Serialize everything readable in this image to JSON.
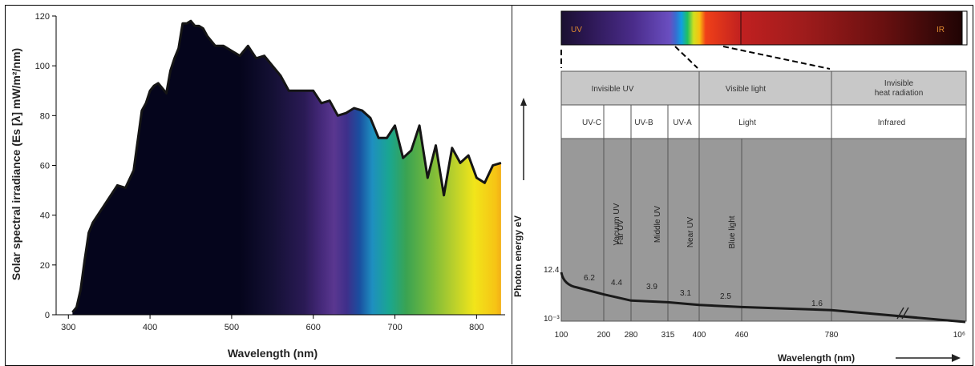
{
  "left_chart": {
    "ylabel": "Solar spectral irradiance  (Es [λ] mW/m²/nm)",
    "xlabel": "Wavelength (nm)",
    "x_ticks": [
      "300",
      "400",
      "500",
      "600",
      "700",
      "800"
    ],
    "y_ticks": [
      "0",
      "20",
      "40",
      "60",
      "80",
      "100",
      "120"
    ]
  },
  "right_panel": {
    "spectrum_left_label": "UV",
    "spectrum_right_label": "IR",
    "top_bands": [
      {
        "label": "Invisible UV"
      },
      {
        "label": "Visible light"
      },
      {
        "label": "Invisible",
        "label2": "heat radiation"
      }
    ],
    "sub_bands": [
      {
        "label": "UV-C"
      },
      {
        "label": "UV-B"
      },
      {
        "label": "UV-A"
      },
      {
        "label": "Light"
      },
      {
        "label": "Infrared"
      }
    ],
    "vertical_labels": [
      "Vacuum UV",
      "Far UV",
      "Middle UV",
      "Near  UV",
      "Blue light"
    ],
    "ylabel": "Photon energy eV",
    "y_top_label": "12.4",
    "y_bottom_label": "10⁻³",
    "x_ticks": [
      "100",
      "200",
      "280",
      "315",
      "400",
      "460",
      "780",
      "10⁶"
    ],
    "energy_labels": [
      "6.2",
      "4.4",
      "3.9",
      "3.1",
      "2.5",
      "1.6"
    ],
    "xlabel": "Wavelength (nm)"
  },
  "chart_data": [
    {
      "type": "area",
      "xlabel": "Wavelength (nm)",
      "ylabel": "Solar spectral irradiance  (Es [λ] mW/m²/nm)",
      "xlim": [
        285,
        835
      ],
      "ylim": [
        0,
        120
      ],
      "grid": false,
      "x": [
        305,
        310,
        315,
        320,
        325,
        330,
        340,
        350,
        360,
        370,
        380,
        390,
        395,
        400,
        405,
        410,
        415,
        420,
        425,
        430,
        435,
        440,
        445,
        450,
        455,
        460,
        465,
        470,
        480,
        490,
        500,
        510,
        520,
        530,
        540,
        550,
        560,
        570,
        580,
        590,
        600,
        610,
        620,
        630,
        640,
        650,
        660,
        670,
        680,
        690,
        700,
        710,
        720,
        730,
        740,
        750,
        760,
        770,
        780,
        790,
        800,
        810,
        820,
        830
      ],
      "y": [
        1,
        3,
        10,
        22,
        33,
        37,
        42,
        47,
        52,
        51,
        58,
        82,
        85,
        90,
        92,
        93,
        91,
        89,
        98,
        103,
        107,
        117,
        117,
        118,
        116,
        116,
        115,
        112,
        108,
        108,
        106,
        104,
        108,
        103,
        104,
        100,
        96,
        90,
        90,
        90,
        90,
        85,
        86,
        80,
        81,
        83,
        82,
        79,
        71,
        71,
        76,
        63,
        66,
        76,
        55,
        68,
        48,
        67,
        61,
        64,
        55,
        53,
        60,
        61
      ]
    },
    {
      "type": "line",
      "xlabel": "Wavelength (nm)",
      "ylabel": "Photon energy eV",
      "x_ticks": [
        "100",
        "200",
        "280",
        "315",
        "400",
        "460",
        "780",
        "10⁶"
      ],
      "x": [
        100,
        200,
        280,
        315,
        400,
        460,
        780
      ],
      "y": [
        12.4,
        6.2,
        4.4,
        3.9,
        3.1,
        2.5,
        1.6
      ],
      "point_labels": [
        "12.4",
        "6.2",
        "4.4",
        "3.9",
        "3.1",
        "2.5",
        "1.6"
      ]
    }
  ]
}
